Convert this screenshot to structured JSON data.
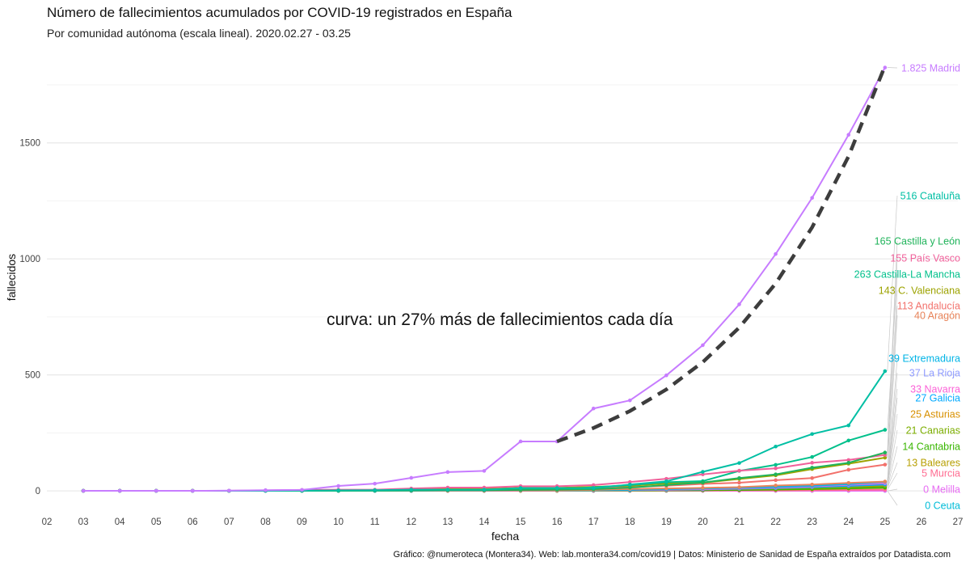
{
  "chart_data": {
    "type": "line",
    "title": "Número de fallecimientos acumulados por COVID-19 registrados en España",
    "subtitle": "Por comunidad autónoma (escala lineal). 2020.02.27 - 03.25",
    "xlabel": "fecha",
    "ylabel": "fallecidos",
    "x_ticks": [
      "02",
      "03",
      "04",
      "05",
      "06",
      "07",
      "08",
      "09",
      "10",
      "11",
      "12",
      "13",
      "14",
      "15",
      "16",
      "17",
      "18",
      "19",
      "20",
      "21",
      "22",
      "23",
      "24",
      "25",
      "26",
      "27"
    ],
    "y_ticks": [
      0,
      500,
      1000,
      1500
    ],
    "xlim": [
      2,
      27
    ],
    "ylim": [
      -80,
      1900
    ],
    "grid": true,
    "x": [
      3,
      4,
      5,
      6,
      7,
      8,
      9,
      10,
      11,
      12,
      13,
      14,
      15,
      16,
      17,
      18,
      19,
      20,
      21,
      22,
      23,
      24,
      25
    ],
    "series": [
      {
        "name": "Madrid",
        "color": "#c77cff",
        "label": "1.825 Madrid",
        "values": [
          0,
          0,
          0,
          0,
          1,
          3,
          4,
          21,
          31,
          56,
          81,
          86,
          213,
          213,
          355,
          390,
          498,
          628,
          804,
          1021,
          1263,
          1535,
          1825
        ]
      },
      {
        "name": "Cataluña",
        "color": "#00bfa4",
        "label": "516 Cataluña",
        "values": [
          0,
          0,
          0,
          0,
          0,
          0,
          1,
          2,
          3,
          5,
          5,
          5,
          12,
          12,
          12,
          27,
          41,
          82,
          120,
          191,
          245,
          282,
          516
        ]
      },
      {
        "name": "Castilla y León",
        "color": "#1fb35a",
        "label": "165 Castilla y León",
        "values": [
          0,
          0,
          0,
          0,
          0,
          0,
          0,
          0,
          1,
          2,
          3,
          3,
          4,
          5,
          7,
          14,
          25,
          36,
          55,
          71,
          100,
          121,
          165
        ]
      },
      {
        "name": "País Vasco",
        "color": "#f0609a",
        "label": "155 País Vasco",
        "values": [
          0,
          0,
          0,
          0,
          0,
          2,
          4,
          5,
          5,
          10,
          14,
          14,
          20,
          20,
          25,
          38,
          52,
          71,
          87,
          97,
          121,
          133,
          155
        ]
      },
      {
        "name": "Castilla-La Mancha",
        "color": "#00c08b",
        "label": "263 Castilla-La Mancha",
        "values": [
          0,
          0,
          0,
          0,
          0,
          0,
          0,
          1,
          1,
          2,
          4,
          4,
          7,
          7,
          15,
          25,
          37,
          42,
          86,
          112,
          146,
          217,
          263
        ]
      },
      {
        "name": "C. Valenciana",
        "color": "#9da300",
        "label": "143 C. Valenciana",
        "values": [
          0,
          0,
          0,
          0,
          0,
          1,
          1,
          1,
          3,
          6,
          8,
          8,
          13,
          13,
          17,
          22,
          32,
          35,
          51,
          67,
          94,
          117,
          143
        ]
      },
      {
        "name": "Andalucía",
        "color": "#f2716b",
        "label": "113 Andalucía",
        "values": [
          0,
          0,
          0,
          0,
          0,
          0,
          1,
          1,
          2,
          3,
          6,
          6,
          8,
          8,
          10,
          16,
          22,
          30,
          35,
          46,
          55,
          91,
          113
        ]
      },
      {
        "name": "Aragón",
        "color": "#e8845a",
        "label": "40 Aragón",
        "values": [
          0,
          0,
          0,
          0,
          0,
          0,
          0,
          1,
          1,
          1,
          1,
          1,
          2,
          2,
          4,
          8,
          10,
          13,
          16,
          23,
          27,
          34,
          40
        ]
      },
      {
        "name": "Extremadura",
        "color": "#00b4e6",
        "label": "39 Extremadura",
        "values": [
          0,
          0,
          0,
          0,
          0,
          0,
          0,
          0,
          0,
          0,
          1,
          1,
          2,
          2,
          3,
          4,
          7,
          10,
          13,
          17,
          22,
          29,
          39
        ]
      },
      {
        "name": "La Rioja",
        "color": "#8f9bff",
        "label": "37 La Rioja",
        "values": [
          0,
          0,
          0,
          0,
          0,
          0,
          0,
          0,
          0,
          1,
          1,
          1,
          2,
          2,
          3,
          5,
          7,
          11,
          14,
          18,
          24,
          30,
          37
        ]
      },
      {
        "name": "Navarra",
        "color": "#fb61d7",
        "label": "33 Navarra",
        "values": [
          0,
          0,
          0,
          0,
          0,
          0,
          0,
          0,
          0,
          0,
          0,
          0,
          1,
          1,
          2,
          3,
          5,
          7,
          10,
          14,
          19,
          26,
          33
        ]
      },
      {
        "name": "Galicia",
        "color": "#00a9ff",
        "label": "27 Galicia",
        "values": [
          0,
          0,
          0,
          0,
          0,
          0,
          0,
          0,
          0,
          0,
          1,
          1,
          1,
          1,
          2,
          3,
          4,
          6,
          9,
          12,
          16,
          21,
          27
        ]
      },
      {
        "name": "Asturias",
        "color": "#d89000",
        "label": "25 Asturias",
        "values": [
          0,
          0,
          0,
          0,
          0,
          0,
          0,
          0,
          0,
          0,
          1,
          1,
          1,
          1,
          2,
          3,
          4,
          6,
          9,
          12,
          16,
          20,
          25
        ]
      },
      {
        "name": "Canarias",
        "color": "#7cae00",
        "label": "21 Canarias",
        "values": [
          0,
          0,
          0,
          0,
          0,
          0,
          0,
          0,
          0,
          0,
          0,
          0,
          1,
          1,
          1,
          2,
          3,
          5,
          7,
          9,
          12,
          16,
          21
        ]
      },
      {
        "name": "Cantabria",
        "color": "#39b600",
        "label": "14 Cantabria",
        "values": [
          0,
          0,
          0,
          0,
          0,
          0,
          0,
          0,
          0,
          0,
          0,
          0,
          0,
          0,
          1,
          1,
          2,
          3,
          4,
          6,
          8,
          11,
          14
        ]
      },
      {
        "name": "Baleares",
        "color": "#b79f00",
        "label": "13 Baleares",
        "values": [
          0,
          0,
          0,
          0,
          0,
          0,
          0,
          0,
          0,
          0,
          0,
          0,
          0,
          0,
          1,
          1,
          2,
          3,
          4,
          5,
          7,
          10,
          13
        ]
      },
      {
        "name": "Murcia",
        "color": "#ff6c91",
        "label": "5 Murcia",
        "values": [
          0,
          0,
          0,
          0,
          0,
          0,
          0,
          0,
          0,
          0,
          0,
          0,
          0,
          0,
          0,
          0,
          1,
          1,
          2,
          2,
          3,
          4,
          5
        ]
      },
      {
        "name": "Melilla",
        "color": "#e76bf3",
        "label": "0 Melilla",
        "values": [
          0,
          0,
          0,
          0,
          0,
          0,
          0,
          0,
          0,
          0,
          0,
          0,
          0,
          0,
          0,
          0,
          0,
          0,
          0,
          0,
          0,
          0,
          0
        ]
      },
      {
        "name": "Ceuta",
        "color": "#00bcd8",
        "label": "0 Ceuta",
        "values": [
          0,
          0,
          0,
          0,
          0,
          0,
          0,
          0,
          0,
          0,
          0,
          0,
          0,
          0,
          0,
          0,
          0,
          0,
          0,
          0,
          0,
          0,
          0
        ]
      }
    ],
    "trend": {
      "annotation": "curva: un 27% más de fallecimientos cada día",
      "color": "#3d3d3d",
      "x": [
        16,
        17,
        18,
        19,
        20,
        21,
        22,
        23,
        24,
        25
      ],
      "values": [
        213,
        271,
        344,
        437,
        555,
        704,
        894,
        1136,
        1442,
        1832
      ]
    },
    "caption": "Gráfico: @numeroteca (Montera34). Web: lab.montera34.com/covid19 | Datos: Ministerio de Sanidad de España extraídos por Datadista.com"
  }
}
